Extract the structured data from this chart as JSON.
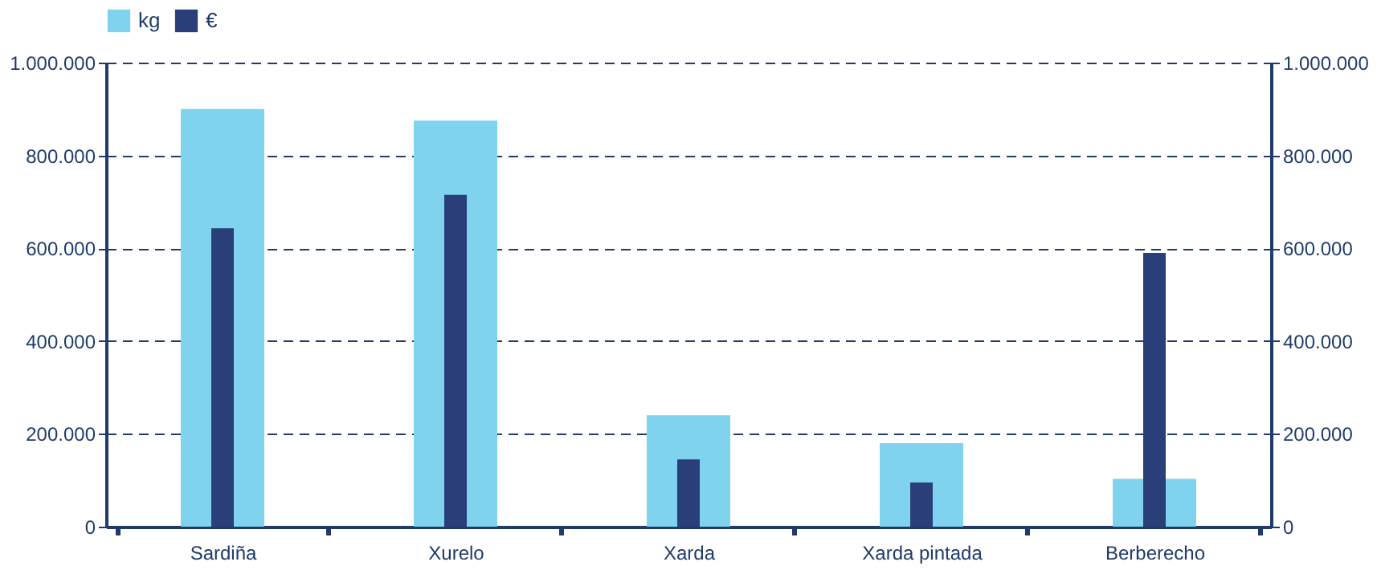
{
  "chart_data": {
    "type": "bar",
    "categories": [
      "Sardiña",
      "Xurelo",
      "Xarda",
      "Xarda pintada",
      "Berberecho"
    ],
    "series": [
      {
        "name": "kg",
        "color": "#7fd3ee",
        "values": [
          900000,
          875000,
          240000,
          180000,
          103000
        ]
      },
      {
        "name": "€",
        "color": "#2a3f7a",
        "axis": "y2",
        "values": [
          643000,
          715000,
          145000,
          95000,
          590000
        ]
      }
    ],
    "ylim": [
      0,
      1000000
    ],
    "yticks": [
      0,
      {
        "value": 200000,
        "label": "200.000"
      },
      {
        "value": 400000,
        "label": "400.000"
      },
      {
        "value": 600000,
        "label": "600.000"
      },
      {
        "value": 800000,
        "label": "800.000"
      },
      {
        "value": 1000000,
        "label": "1.000.000"
      }
    ],
    "y2lim": [
      0,
      1000000
    ],
    "y2ticks": [
      0,
      {
        "value": 200000,
        "label": "200.000"
      },
      {
        "value": 400000,
        "label": "400.000"
      },
      {
        "value": 600000,
        "label": "600.000"
      },
      {
        "value": 800000,
        "label": "800.000"
      },
      {
        "value": 1000000,
        "label": "1.000.000"
      }
    ],
    "grid": "y",
    "line_style": "dashed",
    "legend": "top"
  }
}
